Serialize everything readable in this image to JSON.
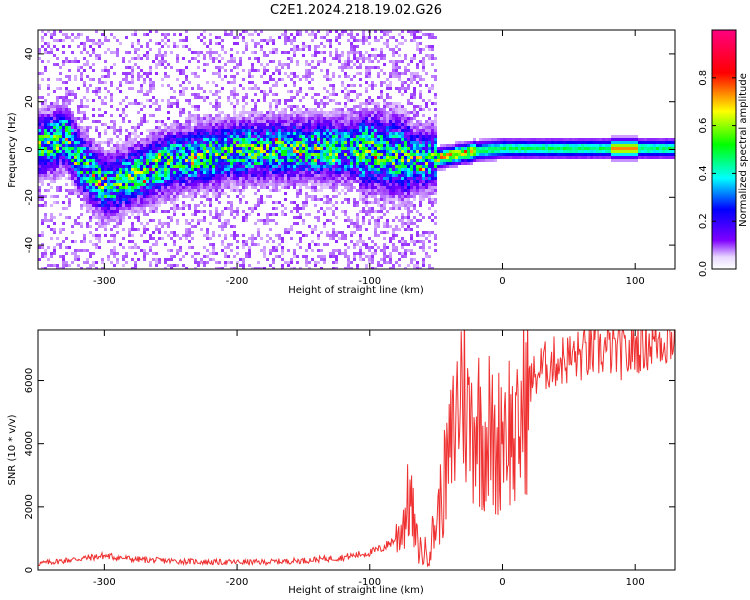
{
  "chart_data": [
    {
      "type": "heatmap",
      "title": "C2E1.2024.218.19.02.G26",
      "xlabel": "Height of straight line (km)",
      "ylabel": "Frequency (Hz)",
      "xlim": [
        -350,
        130
      ],
      "ylim": [
        -50,
        50
      ],
      "xticks": [
        -300,
        -200,
        -100,
        0,
        100
      ],
      "yticks": [
        -40,
        -20,
        0,
        20,
        40
      ],
      "colorbar": {
        "label": "Normalized spectral amplitude",
        "range": [
          0,
          1
        ],
        "ticks": [
          "0.0",
          "0.2",
          "0.4",
          "0.6",
          "0.8"
        ],
        "colors": [
          "#ffffff",
          "#7f00ff",
          "#0000ff",
          "#00ffff",
          "#00ff00",
          "#ffff00",
          "#ff0000",
          "#ff0080"
        ]
      },
      "ridge": {
        "description_free_track": true,
        "x": [
          -350,
          -330,
          -320,
          -310,
          -300,
          -250,
          -200,
          -150,
          -100,
          -80,
          -60,
          -40,
          -20,
          0,
          50,
          90,
          100,
          130
        ],
        "y": [
          2,
          6,
          -4,
          -10,
          -15,
          -4,
          0,
          1,
          0,
          -2,
          -4,
          -2,
          0,
          1,
          1,
          1,
          1,
          1
        ]
      }
    },
    {
      "type": "line",
      "title": "",
      "xlabel": "Height of straight line (km)",
      "ylabel": "SNR (10 * v/v)",
      "xlim": [
        -350,
        130
      ],
      "ylim": [
        0,
        7600
      ],
      "xticks": [
        -300,
        -200,
        -100,
        0,
        100
      ],
      "yticks": [
        0,
        2000,
        4000,
        6000
      ],
      "color": "#ef3030",
      "series": [
        {
          "name": "SNR",
          "x": [
            -350,
            -330,
            -300,
            -280,
            -260,
            -220,
            -180,
            -150,
            -120,
            -100,
            -90,
            -80,
            -75,
            -70,
            -68,
            -65,
            -60,
            -55,
            -50,
            -45,
            -40,
            -35,
            -30,
            -25,
            -20,
            -15,
            -10,
            -5,
            0,
            5,
            10,
            15,
            20,
            30,
            40,
            60,
            80,
            95,
            100,
            110,
            120,
            130
          ],
          "y": [
            200,
            300,
            450,
            350,
            300,
            250,
            250,
            300,
            400,
            550,
            700,
            1000,
            1500,
            2300,
            1800,
            900,
            500,
            700,
            1500,
            2500,
            3500,
            4800,
            6300,
            4500,
            5000,
            4200,
            4500,
            3500,
            4900,
            4600,
            3800,
            5000,
            5900,
            6400,
            6600,
            6800,
            7000,
            6800,
            7100,
            7200,
            7300,
            7400
          ]
        }
      ]
    }
  ]
}
